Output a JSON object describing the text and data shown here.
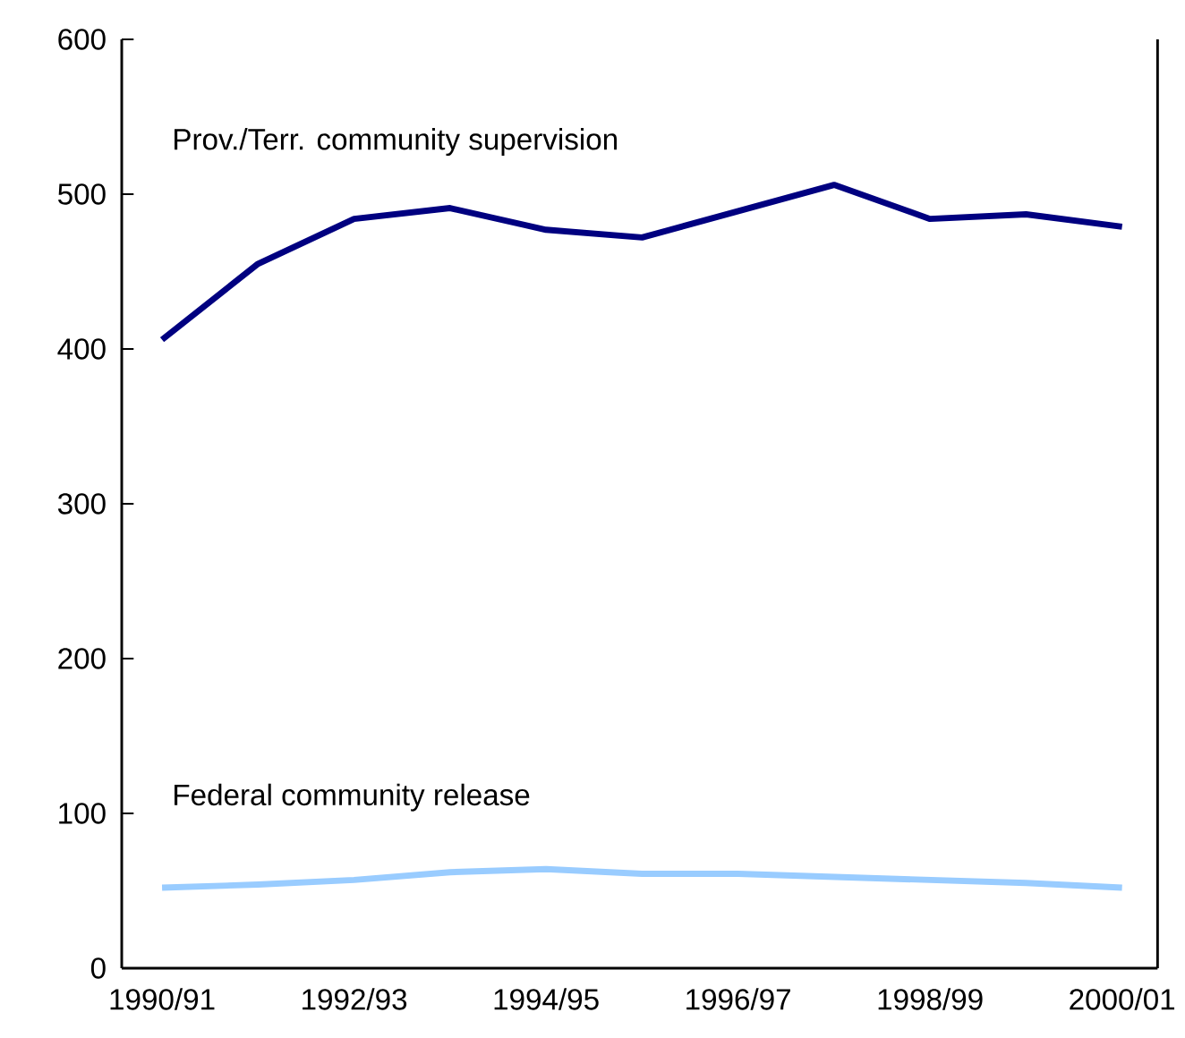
{
  "chart_data": {
    "type": "line",
    "categories": [
      "1990/91",
      null,
      "1992/93",
      null,
      "1994/95",
      null,
      "1996/97",
      null,
      "1998/99",
      null,
      "2000/01"
    ],
    "series": [
      {
        "name": "Prov./Terr. community supervision",
        "color": "#000080",
        "values": [
          406,
          455,
          484,
          491,
          477,
          472,
          489,
          506,
          484,
          487,
          479
        ]
      },
      {
        "name": "Federal community release",
        "color": "#99ccff",
        "values": [
          52,
          54,
          57,
          62,
          64,
          61,
          61,
          59,
          57,
          55,
          52
        ]
      }
    ],
    "ylim": [
      0,
      600
    ],
    "yticks": [
      0,
      100,
      200,
      300,
      400,
      500,
      600
    ],
    "grid": false,
    "legend": false,
    "marker": "none",
    "line_style": "solid"
  }
}
